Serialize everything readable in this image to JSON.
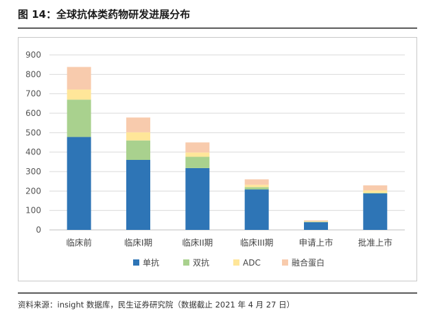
{
  "header": {
    "title": "图 14：全球抗体类药物研发进展分布"
  },
  "footer": {
    "source": "资料来源：insight 数据库，民生证券研究院（数据截止 2021 年 4 月 27 日）"
  },
  "chart_data": {
    "type": "bar",
    "stacked": true,
    "categories": [
      "临床前",
      "临床I期",
      "临床II期",
      "临床III期",
      "申请上市",
      "批准上市"
    ],
    "ylim": [
      0,
      900
    ],
    "yticks": [
      0,
      100,
      200,
      300,
      400,
      500,
      600,
      700,
      800,
      900
    ],
    "grid": true,
    "legend_position": "bottom",
    "series": [
      {
        "name": "单抗",
        "color": "#2e75b6",
        "values": [
          478,
          360,
          318,
          208,
          40,
          188
        ]
      },
      {
        "name": "双抗",
        "color": "#a9d18e",
        "values": [
          192,
          100,
          58,
          12,
          2,
          3
        ]
      },
      {
        "name": "ADC",
        "color": "#ffe699",
        "values": [
          52,
          42,
          22,
          12,
          3,
          12
        ]
      },
      {
        "name": "融合蛋白",
        "color": "#f8cbad",
        "values": [
          116,
          76,
          52,
          28,
          4,
          26
        ]
      }
    ]
  }
}
